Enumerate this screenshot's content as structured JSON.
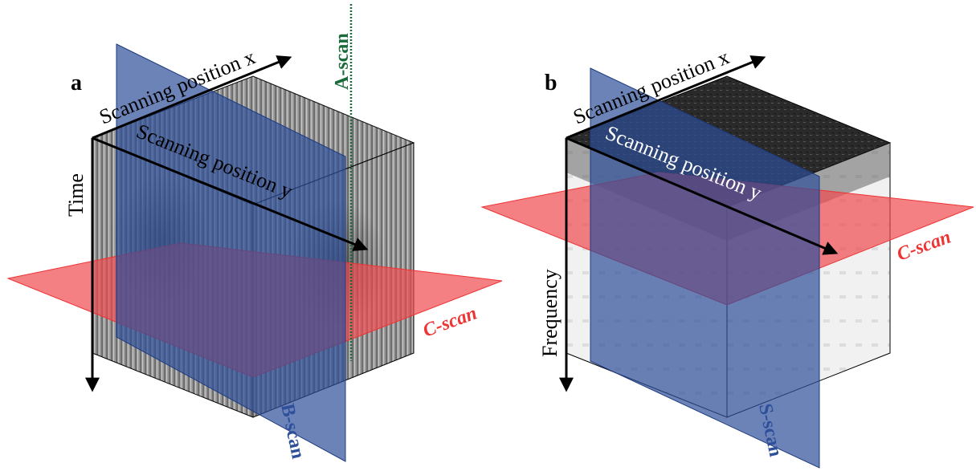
{
  "panels": [
    {
      "label": "a",
      "axis_x": "Scanning position x",
      "axis_y": "Scanning position y",
      "axis_vertical": "Time",
      "a_scan": "A-scan",
      "b_scan": "B-scan",
      "c_scan": "C-scan"
    },
    {
      "label": "b",
      "axis_x": "Scanning position x",
      "axis_y": "Scanning position y",
      "axis_vertical": "Frequency",
      "s_scan": "S-scan",
      "c_scan": "C-scan"
    }
  ]
}
